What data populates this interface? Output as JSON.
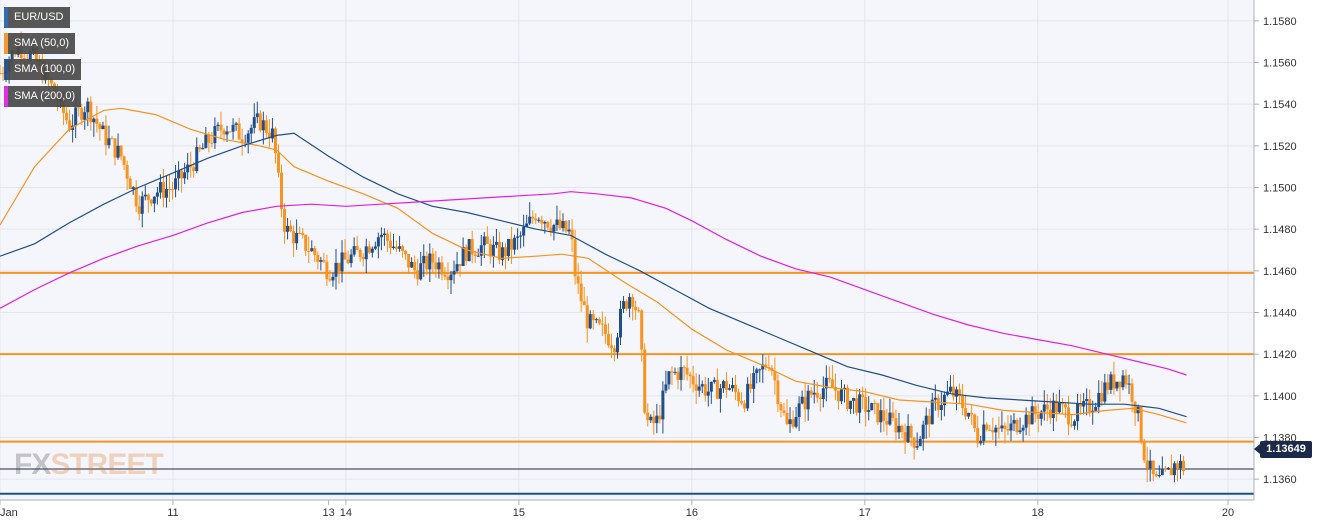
{
  "chart_data": {
    "type": "candlestick",
    "symbol": "EUR/USD",
    "ylim": [
      1.135,
      1.159
    ],
    "y_ticks": [
      "1.1580",
      "1.1560",
      "1.1540",
      "1.1520",
      "1.1500",
      "1.1480",
      "1.1460",
      "1.1440",
      "1.1420",
      "1.1400",
      "1.1380",
      "1.1360"
    ],
    "x_ticks": [
      {
        "label": "Jan",
        "t": 0
      },
      {
        "label": "11",
        "t": 1
      },
      {
        "label": "13",
        "t": 1.9
      },
      {
        "label": "14",
        "t": 2
      },
      {
        "label": "15",
        "t": 3
      },
      {
        "label": "16",
        "t": 4
      },
      {
        "label": "17",
        "t": 5
      },
      {
        "label": "18",
        "t": 6
      },
      {
        "label": "20",
        "t": 7.1
      }
    ],
    "t_range": [
      0,
      7.25
    ],
    "grid": true,
    "legend_position": "top-left",
    "legend": [
      {
        "label": "EUR/USD",
        "color": "#2060b0"
      },
      {
        "label": "SMA (50,0)",
        "color": "#f7931e"
      },
      {
        "label": "SMA (100,0)",
        "color": "#1f4e8c"
      },
      {
        "label": "SMA (200,0)",
        "color": "#e020e0"
      }
    ],
    "last_price": "1.13649",
    "last_price_value": 1.13649,
    "horizontal_levels": [
      {
        "value": 1.1459,
        "color": "#f7931e"
      },
      {
        "value": 1.142,
        "color": "#f7931e"
      },
      {
        "value": 1.1378,
        "color": "#f7931e"
      },
      {
        "value": 1.1353,
        "color": "#1f4e8c"
      }
    ],
    "price_path": [
      [
        0.0,
        1.1555
      ],
      [
        0.1,
        1.1568
      ],
      [
        0.2,
        1.1562
      ],
      [
        0.3,
        1.1548
      ],
      [
        0.4,
        1.153
      ],
      [
        0.5,
        1.154
      ],
      [
        0.6,
        1.1525
      ],
      [
        0.7,
        1.1515
      ],
      [
        0.8,
        1.1492
      ],
      [
        0.9,
        1.1498
      ],
      [
        1.0,
        1.15
      ],
      [
        1.1,
        1.151
      ],
      [
        1.2,
        1.1522
      ],
      [
        1.3,
        1.153
      ],
      [
        1.4,
        1.1525
      ],
      [
        1.5,
        1.1532
      ],
      [
        1.58,
        1.1525
      ],
      [
        1.62,
        1.1495
      ],
      [
        1.65,
        1.148
      ],
      [
        1.8,
        1.147
      ],
      [
        1.9,
        1.146
      ],
      [
        2.0,
        1.1465
      ],
      [
        2.1,
        1.147
      ],
      [
        2.2,
        1.1478
      ],
      [
        2.3,
        1.147
      ],
      [
        2.4,
        1.146
      ],
      [
        2.5,
        1.1465
      ],
      [
        2.6,
        1.146
      ],
      [
        2.7,
        1.147
      ],
      [
        2.8,
        1.1472
      ],
      [
        2.9,
        1.1468
      ],
      [
        3.0,
        1.1475
      ],
      [
        3.1,
        1.1488
      ],
      [
        3.2,
        1.1482
      ],
      [
        3.3,
        1.1478
      ],
      [
        3.33,
        1.1455
      ],
      [
        3.4,
        1.1435
      ],
      [
        3.5,
        1.143
      ],
      [
        3.55,
        1.1425
      ],
      [
        3.6,
        1.1442
      ],
      [
        3.65,
        1.145
      ],
      [
        3.7,
        1.1435
      ],
      [
        3.72,
        1.14
      ],
      [
        3.75,
        1.1385
      ],
      [
        3.8,
        1.1388
      ],
      [
        3.87,
        1.141
      ],
      [
        3.95,
        1.1412
      ],
      [
        4.0,
        1.1408
      ],
      [
        4.1,
        1.1402
      ],
      [
        4.2,
        1.1405
      ],
      [
        4.3,
        1.1398
      ],
      [
        4.4,
        1.1412
      ],
      [
        4.45,
        1.1418
      ],
      [
        4.5,
        1.14
      ],
      [
        4.55,
        1.1385
      ],
      [
        4.6,
        1.1392
      ],
      [
        4.7,
        1.1402
      ],
      [
        4.8,
        1.1405
      ],
      [
        4.9,
        1.1398
      ],
      [
        5.0,
        1.1395
      ],
      [
        5.1,
        1.139
      ],
      [
        5.2,
        1.1385
      ],
      [
        5.3,
        1.1378
      ],
      [
        5.4,
        1.1395
      ],
      [
        5.5,
        1.1402
      ],
      [
        5.6,
        1.1392
      ],
      [
        5.65,
        1.138
      ],
      [
        5.7,
        1.1388
      ],
      [
        5.8,
        1.1382
      ],
      [
        5.9,
        1.1388
      ],
      [
        6.0,
        1.1392
      ],
      [
        6.1,
        1.1395
      ],
      [
        6.2,
        1.139
      ],
      [
        6.3,
        1.1395
      ],
      [
        6.4,
        1.1405
      ],
      [
        6.5,
        1.141
      ],
      [
        6.55,
        1.14
      ],
      [
        6.58,
        1.139
      ],
      [
        6.62,
        1.137
      ],
      [
        6.68,
        1.1358
      ],
      [
        6.75,
        1.1362
      ],
      [
        6.8,
        1.1368
      ],
      [
        6.86,
        1.1365
      ]
    ],
    "sma_series": [
      {
        "name": "SMA (50,0)",
        "color": "#f7931e",
        "points": [
          [
            0.0,
            1.1482
          ],
          [
            0.2,
            1.151
          ],
          [
            0.4,
            1.1528
          ],
          [
            0.6,
            1.1537
          ],
          [
            0.7,
            1.1538
          ],
          [
            0.9,
            1.1535
          ],
          [
            1.1,
            1.1528
          ],
          [
            1.3,
            1.1523
          ],
          [
            1.5,
            1.152
          ],
          [
            1.6,
            1.1518
          ],
          [
            1.7,
            1.151
          ],
          [
            1.9,
            1.1503
          ],
          [
            2.1,
            1.1497
          ],
          [
            2.3,
            1.149
          ],
          [
            2.5,
            1.1478
          ],
          [
            2.7,
            1.147
          ],
          [
            2.9,
            1.1466
          ],
          [
            3.1,
            1.1467
          ],
          [
            3.25,
            1.1468
          ],
          [
            3.4,
            1.1466
          ],
          [
            3.6,
            1.1455
          ],
          [
            3.8,
            1.1445
          ],
          [
            4.0,
            1.1432
          ],
          [
            4.2,
            1.1422
          ],
          [
            4.4,
            1.1415
          ],
          [
            4.6,
            1.1407
          ],
          [
            4.8,
            1.1404
          ],
          [
            5.0,
            1.1402
          ],
          [
            5.2,
            1.1398
          ],
          [
            5.4,
            1.1397
          ],
          [
            5.6,
            1.1396
          ],
          [
            5.8,
            1.1393
          ],
          [
            6.0,
            1.1392
          ],
          [
            6.2,
            1.1391
          ],
          [
            6.4,
            1.1393
          ],
          [
            6.55,
            1.1394
          ],
          [
            6.7,
            1.1391
          ],
          [
            6.86,
            1.1387
          ]
        ]
      },
      {
        "name": "SMA (100,0)",
        "color": "#1f4e8c",
        "points": [
          [
            0.0,
            1.1467
          ],
          [
            0.2,
            1.1473
          ],
          [
            0.4,
            1.1483
          ],
          [
            0.6,
            1.1492
          ],
          [
            0.8,
            1.15
          ],
          [
            1.0,
            1.1507
          ],
          [
            1.2,
            1.1514
          ],
          [
            1.4,
            1.152
          ],
          [
            1.6,
            1.1525
          ],
          [
            1.7,
            1.1526
          ],
          [
            1.9,
            1.1515
          ],
          [
            2.1,
            1.1505
          ],
          [
            2.3,
            1.1497
          ],
          [
            2.5,
            1.1491
          ],
          [
            2.7,
            1.1488
          ],
          [
            2.9,
            1.1484
          ],
          [
            3.1,
            1.148
          ],
          [
            3.3,
            1.1477
          ],
          [
            3.5,
            1.1468
          ],
          [
            3.7,
            1.146
          ],
          [
            3.9,
            1.1451
          ],
          [
            4.1,
            1.1442
          ],
          [
            4.3,
            1.1435
          ],
          [
            4.5,
            1.1428
          ],
          [
            4.7,
            1.1421
          ],
          [
            4.9,
            1.1414
          ],
          [
            5.1,
            1.141
          ],
          [
            5.3,
            1.1405
          ],
          [
            5.5,
            1.1401
          ],
          [
            5.7,
            1.1399
          ],
          [
            5.9,
            1.1398
          ],
          [
            6.1,
            1.1397
          ],
          [
            6.3,
            1.1396
          ],
          [
            6.5,
            1.1396
          ],
          [
            6.7,
            1.1394
          ],
          [
            6.86,
            1.139
          ]
        ]
      },
      {
        "name": "SMA (200,0)",
        "color": "#e020e0",
        "points": [
          [
            0.0,
            1.1442
          ],
          [
            0.2,
            1.1451
          ],
          [
            0.4,
            1.1459
          ],
          [
            0.6,
            1.1466
          ],
          [
            0.8,
            1.1472
          ],
          [
            1.0,
            1.1477
          ],
          [
            1.2,
            1.1483
          ],
          [
            1.4,
            1.1488
          ],
          [
            1.6,
            1.1491
          ],
          [
            1.8,
            1.1492
          ],
          [
            2.0,
            1.1491
          ],
          [
            2.2,
            1.1492
          ],
          [
            2.4,
            1.1493
          ],
          [
            2.6,
            1.1494
          ],
          [
            2.8,
            1.1495
          ],
          [
            3.0,
            1.1496
          ],
          [
            3.2,
            1.1497
          ],
          [
            3.3,
            1.1498
          ],
          [
            3.45,
            1.1497
          ],
          [
            3.65,
            1.1495
          ],
          [
            3.85,
            1.149
          ],
          [
            4.0,
            1.1484
          ],
          [
            4.2,
            1.1475
          ],
          [
            4.4,
            1.1467
          ],
          [
            4.6,
            1.1461
          ],
          [
            4.8,
            1.1457
          ],
          [
            5.0,
            1.1451
          ],
          [
            5.2,
            1.1445
          ],
          [
            5.4,
            1.1439
          ],
          [
            5.6,
            1.1434
          ],
          [
            5.8,
            1.143
          ],
          [
            6.0,
            1.1427
          ],
          [
            6.2,
            1.1424
          ],
          [
            6.4,
            1.142
          ],
          [
            6.6,
            1.1416
          ],
          [
            6.75,
            1.1413
          ],
          [
            6.86,
            1.141
          ]
        ]
      }
    ]
  },
  "watermark": {
    "part1": "FX",
    "part2": "STREET"
  }
}
